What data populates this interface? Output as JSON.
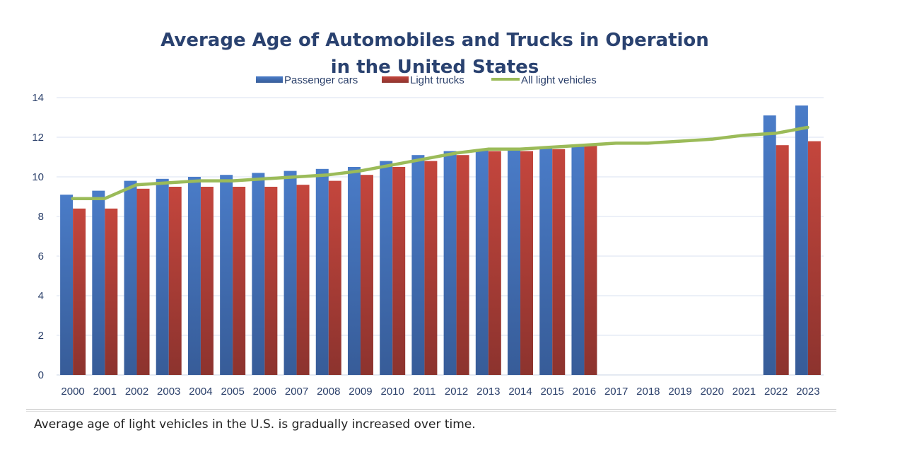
{
  "chart_data": {
    "type": "bar",
    "title_lines": [
      "Average Age of Automobiles and Trucks in Operation",
      "in the United States"
    ],
    "categories": [
      "2000",
      "2001",
      "2002",
      "2003",
      "2004",
      "2005",
      "2006",
      "2007",
      "2008",
      "2009",
      "2010",
      "2011",
      "2012",
      "2013",
      "2014",
      "2015",
      "2016",
      "2017",
      "2018",
      "2019",
      "2020",
      "2021",
      "2022",
      "2023"
    ],
    "series": [
      {
        "name": "Passenger cars",
        "kind": "bar",
        "color": "#4472c4",
        "values": [
          9.1,
          9.3,
          9.8,
          9.9,
          10.0,
          10.1,
          10.2,
          10.3,
          10.4,
          10.5,
          10.8,
          11.1,
          11.3,
          11.4,
          11.4,
          11.5,
          11.6,
          null,
          null,
          null,
          null,
          null,
          13.1,
          13.6
        ]
      },
      {
        "name": "Light trucks",
        "kind": "bar",
        "color": "#c0443c",
        "values": [
          8.4,
          8.4,
          9.4,
          9.5,
          9.5,
          9.5,
          9.5,
          9.6,
          9.8,
          10.1,
          10.5,
          10.8,
          11.1,
          11.3,
          11.3,
          11.4,
          11.6,
          null,
          null,
          null,
          null,
          null,
          11.6,
          11.8
        ]
      },
      {
        "name": "All light vehicles",
        "kind": "line",
        "color": "#9bbb59",
        "values": [
          8.9,
          8.9,
          9.6,
          9.7,
          9.8,
          9.8,
          9.9,
          10.0,
          10.1,
          10.3,
          10.6,
          10.9,
          11.2,
          11.4,
          11.4,
          11.5,
          11.6,
          11.7,
          11.7,
          11.8,
          11.9,
          12.1,
          12.2,
          12.5
        ]
      }
    ],
    "yticks": [
      0,
      2,
      4,
      6,
      8,
      10,
      12,
      14
    ],
    "ylim": [
      0,
      14
    ],
    "grid": true,
    "legend_placement": "top-center"
  },
  "caption": "Average age of light vehicles in the U.S. is gradually increased over time."
}
